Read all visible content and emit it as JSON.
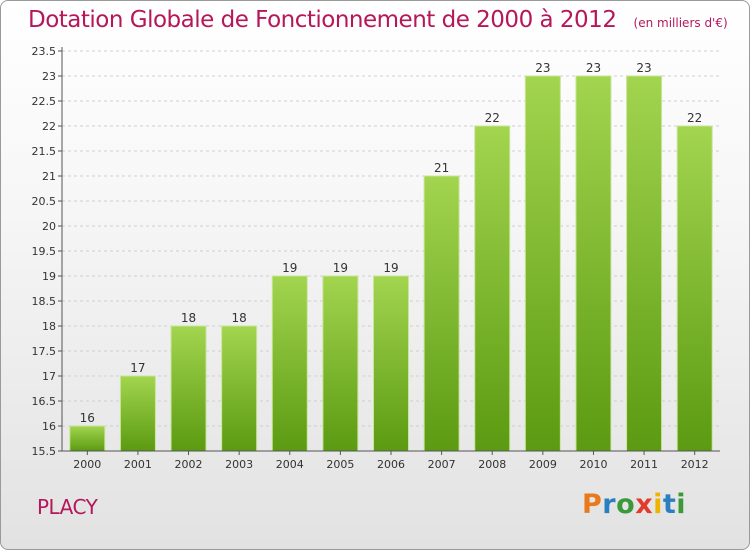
{
  "header": {
    "title": "Dotation Globale de Fonctionnement de 2000 à 2012",
    "subtitle": "(en milliers d'€)"
  },
  "commune": "PLACY",
  "logo": {
    "text": "Proxiti",
    "letter_colors": [
      "#e87a1d",
      "#2a7fc1",
      "#3a9a3a",
      "#e23b2e",
      "#f0b400",
      "#2a7fc1",
      "#3a9a3a"
    ]
  },
  "chart_data": {
    "type": "bar",
    "title": "Dotation Globale de Fonctionnement de 2000 à 2012",
    "subtitle": "(en milliers d'€)",
    "categories": [
      "2000",
      "2001",
      "2002",
      "2003",
      "2004",
      "2005",
      "2006",
      "2007",
      "2008",
      "2009",
      "2010",
      "2011",
      "2012"
    ],
    "values": [
      16,
      17,
      18,
      18,
      19,
      19,
      19,
      21,
      22,
      23,
      23,
      23,
      22
    ],
    "ylim": [
      15.5,
      23.5
    ],
    "yticks": [
      "15.5",
      "16",
      "16.5",
      "17",
      "17.5",
      "18",
      "18.5",
      "19",
      "19.5",
      "20",
      "20.5",
      "21",
      "21.5",
      "22",
      "22.5",
      "23",
      "23.5"
    ],
    "grid": true,
    "bar_color_top": "#a3d54f",
    "bar_color_bottom": "#5b9a12",
    "xlabel": "",
    "ylabel": ""
  }
}
